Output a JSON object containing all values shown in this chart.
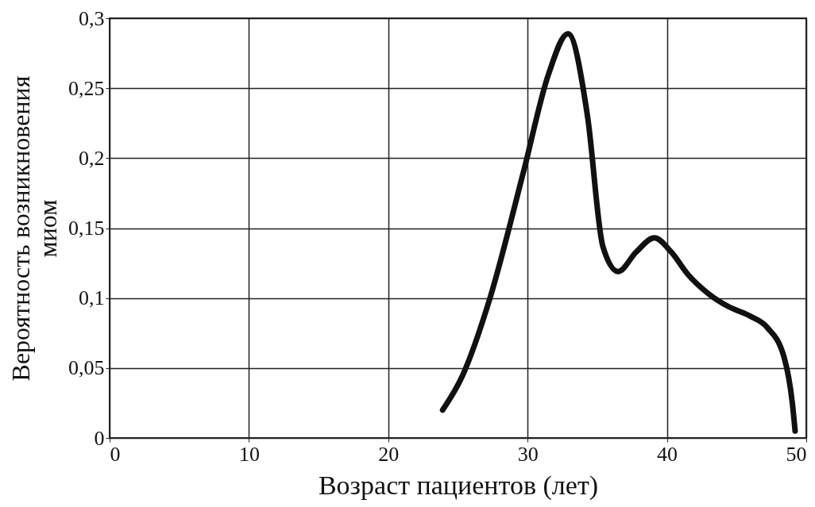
{
  "chart_data": {
    "type": "line",
    "xlabel": "Возраст пациентов (лет)",
    "ylabel": "Вероятность возникновения миом",
    "x": [
      23.9,
      25.3,
      27.3,
      29.7,
      31.5,
      32.9,
      34.3,
      35.4,
      36.5,
      37.8,
      39.1,
      40.3,
      41.5,
      43,
      44.4,
      46,
      47.2,
      48.4,
      49,
      49.2
    ],
    "series": [
      {
        "color": "#111111",
        "values": [
          0.02,
          0.044,
          0.1,
          0.19,
          0.26,
          0.289,
          0.23,
          0.137,
          0.119,
          0.133,
          0.143,
          0.133,
          0.117,
          0.103,
          0.094,
          0.087,
          0.079,
          0.058,
          0.025,
          0.005
        ]
      }
    ],
    "xlim": [
      0,
      50
    ],
    "xticks": [
      0,
      10,
      20,
      30,
      40,
      50
    ],
    "ylim": [
      0,
      0.3
    ],
    "yticks": [
      0,
      {
        "value": 0.05,
        "label": "0,05"
      },
      {
        "value": 0.1,
        "label": "0,1"
      },
      {
        "value": 0.15,
        "label": "0,15"
      },
      {
        "value": 0.2,
        "label": "0,2"
      },
      {
        "value": 0.25,
        "label": "0,25"
      },
      {
        "value": 0.3,
        "label": "0,3"
      }
    ],
    "grid": true,
    "marker": "none",
    "line_style": "solid"
  }
}
